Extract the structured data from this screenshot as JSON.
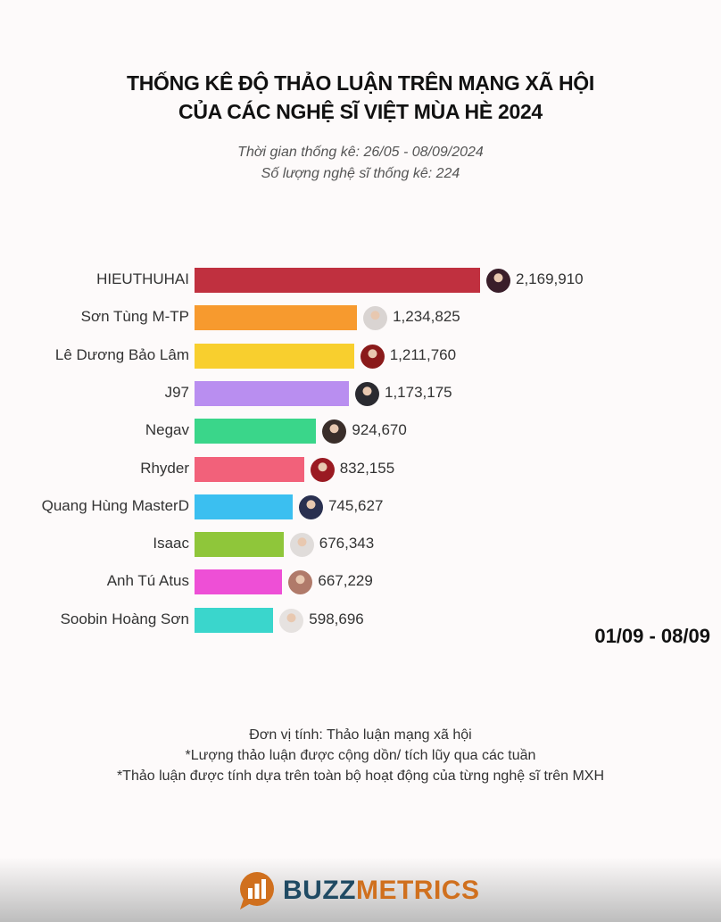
{
  "chart_data": {
    "type": "bar",
    "orientation": "horizontal",
    "title": [
      "THỐNG KÊ ĐỘ THẢO LUẬN TRÊN MẠNG XÃ HỘI",
      "CỦA CÁC NGHỆ SĨ VIỆT MÙA HÈ 2024"
    ],
    "subtitle": [
      "Thời gian thống kê: 26/05 - 08/09/2024",
      "Số lượng nghệ sĩ thống kê: 224"
    ],
    "period": "01/09 - 08/09",
    "categories": [
      "HIEUTHUHAI",
      "Sơn Tùng M-TP",
      "Lê Dương Bảo Lâm",
      "J97",
      "Negav",
      "Rhyder",
      "Quang Hùng MasterD",
      "Isaac",
      "Anh Tú Atus",
      "Soobin Hoàng Sơn"
    ],
    "values": [
      2169910,
      1234825,
      1211760,
      1173175,
      924670,
      832155,
      745627,
      676343,
      667229,
      598696
    ],
    "value_labels": [
      "2,169,910",
      "1,234,825",
      "1,211,760",
      "1,173,175",
      "924,670",
      "832,155",
      "745,627",
      "676,343",
      "667,229",
      "598,696"
    ],
    "colors": [
      "#c0303f",
      "#f79a2e",
      "#f8cf2e",
      "#b98ef0",
      "#3ad68a",
      "#f2617a",
      "#3bbff0",
      "#8fc63a",
      "#ee4fd6",
      "#3ad6cc"
    ],
    "avatar_colors": [
      "#3a1e2a",
      "#d9d4d2",
      "#8a1a1a",
      "#2a2a30",
      "#3a2e2a",
      "#9a1a22",
      "#2a3050",
      "#e0dcda",
      "#b07a6a",
      "#e6e2e0"
    ],
    "xlim": [
      0,
      2169910
    ],
    "notes": [
      "Đơn vị tính: Thảo luận mạng xã hội",
      "*Lượng thảo luận được cộng dồn/ tích lũy qua các tuần",
      "*Thảo luận được tính dựa trên toàn bộ hoạt động của từng nghệ sĩ trên MXH"
    ]
  },
  "brand": {
    "part1": "BUZZ",
    "part2": "METRICS",
    "color1": "#1f4a63",
    "color2": "#d0701e"
  }
}
